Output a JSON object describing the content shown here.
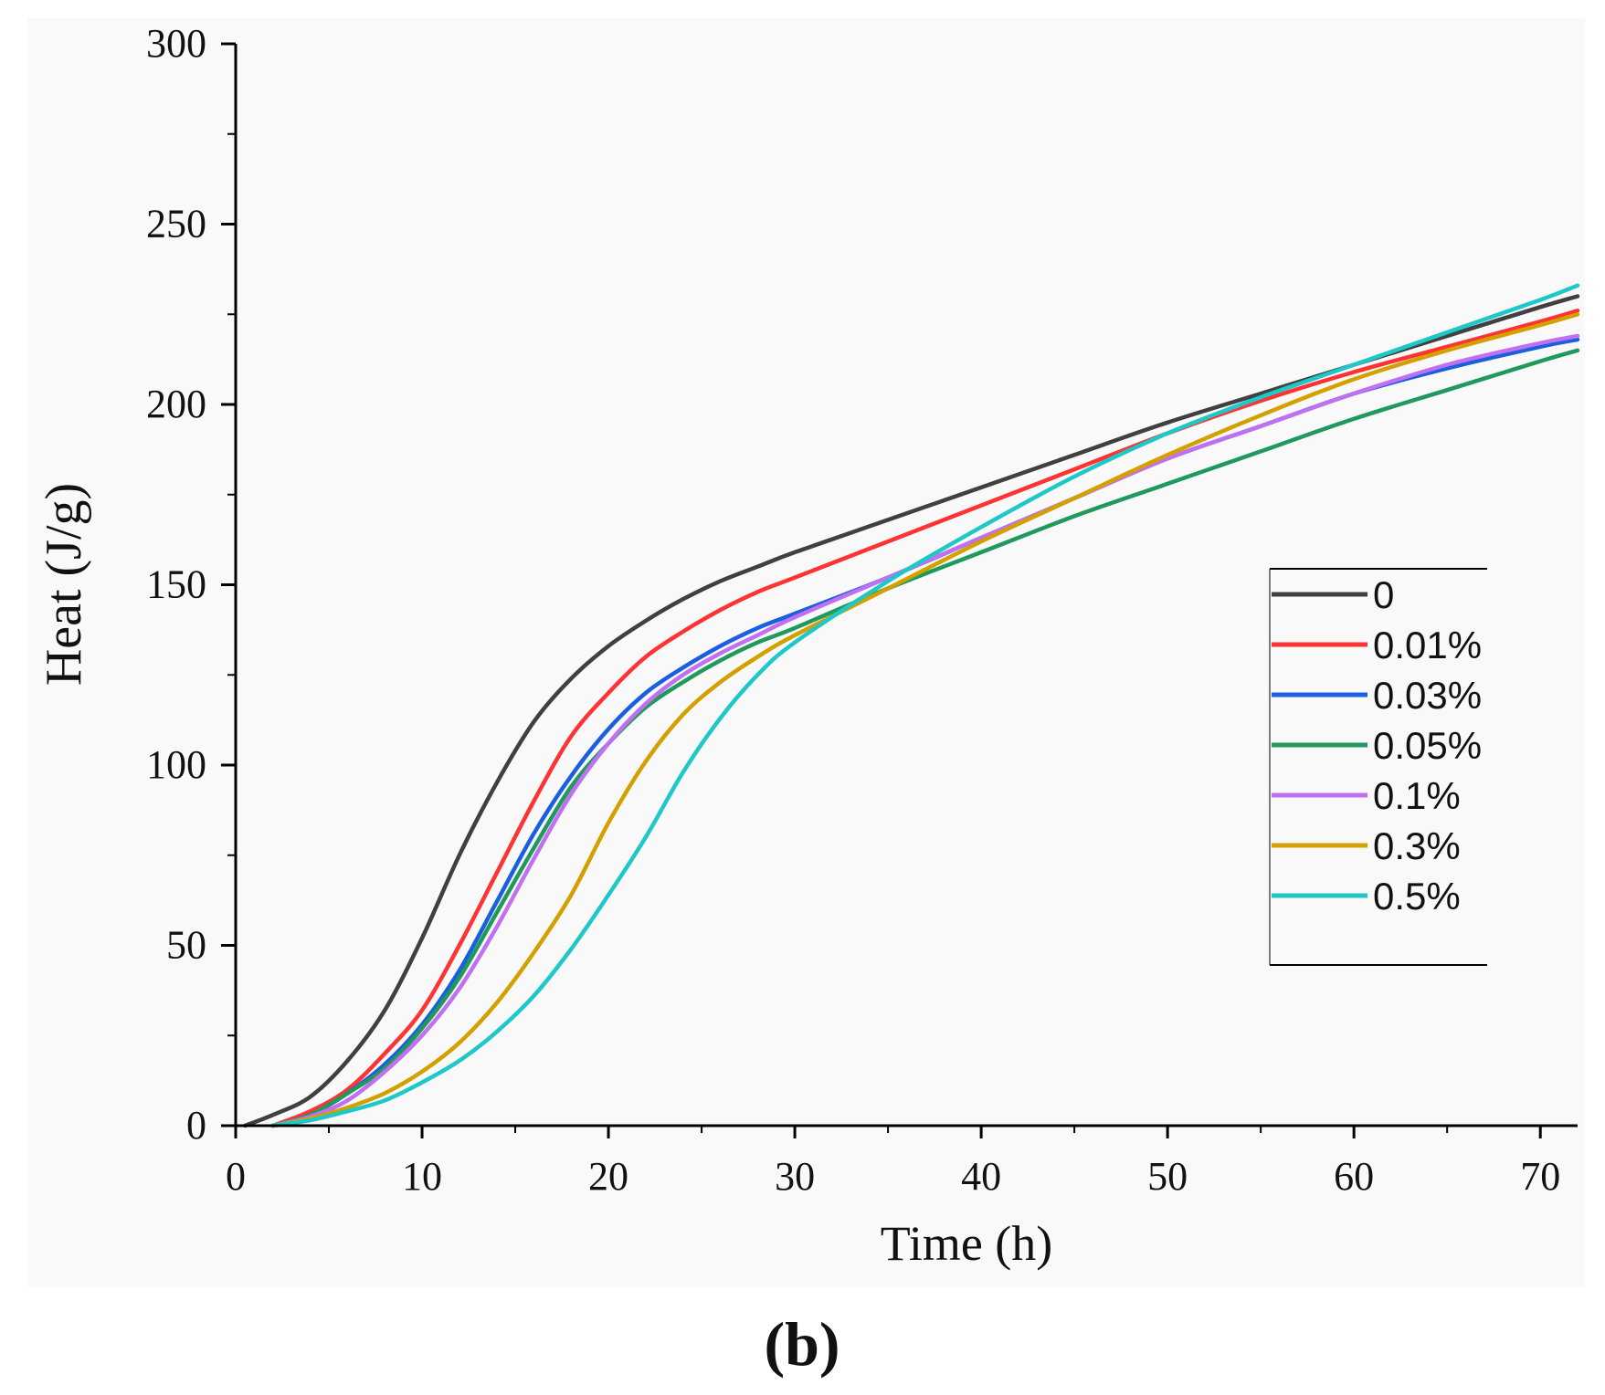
{
  "figure_label": "(b)",
  "chart_data": {
    "type": "line",
    "title": "",
    "xlabel": "Time (h)",
    "ylabel": "Heat  (J/g)",
    "xlim": [
      0,
      72
    ],
    "ylim": [
      0,
      300
    ],
    "x_ticks": [
      0,
      10,
      20,
      30,
      40,
      50,
      60,
      70
    ],
    "y_ticks": [
      0,
      50,
      100,
      150,
      200,
      250,
      300
    ],
    "x_tick_labels": [
      "0",
      "10",
      "20",
      "30",
      "40",
      "50",
      "60",
      "70"
    ],
    "y_tick_labels": [
      "0",
      "50",
      "100",
      "150",
      "200",
      "250",
      "300"
    ],
    "grid": false,
    "legend_position": "right",
    "x": [
      0.5,
      2,
      4,
      6,
      8,
      10,
      12,
      14,
      16,
      18,
      20,
      22,
      24,
      26,
      28,
      30,
      35,
      40,
      45,
      50,
      55,
      60,
      65,
      70,
      72
    ],
    "series": [
      {
        "name": "0",
        "color": "#404040",
        "values": [
          0,
          3,
          8,
          18,
          32,
          52,
          75,
          95,
          112,
          124,
          133,
          140,
          146,
          151,
          155,
          159,
          168,
          177,
          186,
          195,
          203,
          211,
          219,
          227,
          230
        ]
      },
      {
        "name": "0.01%",
        "color": "#ff3333",
        "values": [
          null,
          0,
          4,
          10,
          20,
          32,
          50,
          70,
          90,
          108,
          120,
          130,
          137,
          143,
          148,
          152,
          162,
          172,
          182,
          192,
          201,
          209,
          216,
          223,
          226
        ]
      },
      {
        "name": "0.03%",
        "color": "#1a5fe0",
        "values": [
          null,
          0,
          3,
          9,
          17,
          28,
          43,
          62,
          81,
          97,
          110,
          120,
          127,
          133,
          138,
          142,
          152,
          163,
          174,
          185,
          194,
          203,
          210,
          216,
          218
        ]
      },
      {
        "name": "0.05%",
        "color": "#1f9a5c",
        "values": [
          null,
          0,
          3,
          9,
          16,
          27,
          41,
          59,
          77,
          94,
          106,
          116,
          123,
          129,
          134,
          138,
          149,
          159,
          169,
          178,
          187,
          196,
          204,
          212,
          215
        ]
      },
      {
        "name": "0.1%",
        "color": "#c070f0",
        "values": [
          null,
          0,
          2.5,
          7,
          15,
          25,
          38,
          55,
          74,
          92,
          106,
          117,
          125,
          131,
          136,
          141,
          152,
          163,
          174,
          185,
          194,
          203,
          211,
          217,
          219
        ]
      },
      {
        "name": "0.3%",
        "color": "#d4a000",
        "values": [
          null,
          0,
          2,
          5,
          9,
          15,
          23,
          34,
          48,
          64,
          84,
          101,
          114,
          123,
          130,
          136,
          149,
          162,
          174,
          186,
          197,
          207,
          215,
          222,
          225
        ]
      },
      {
        "name": "0.5%",
        "color": "#1ec8c8",
        "values": [
          null,
          0,
          1.5,
          4,
          7,
          12,
          18,
          26,
          36,
          49,
          64,
          80,
          98,
          113,
          125,
          134,
          151,
          166,
          180,
          192,
          202,
          211,
          220,
          229,
          233
        ]
      }
    ]
  }
}
